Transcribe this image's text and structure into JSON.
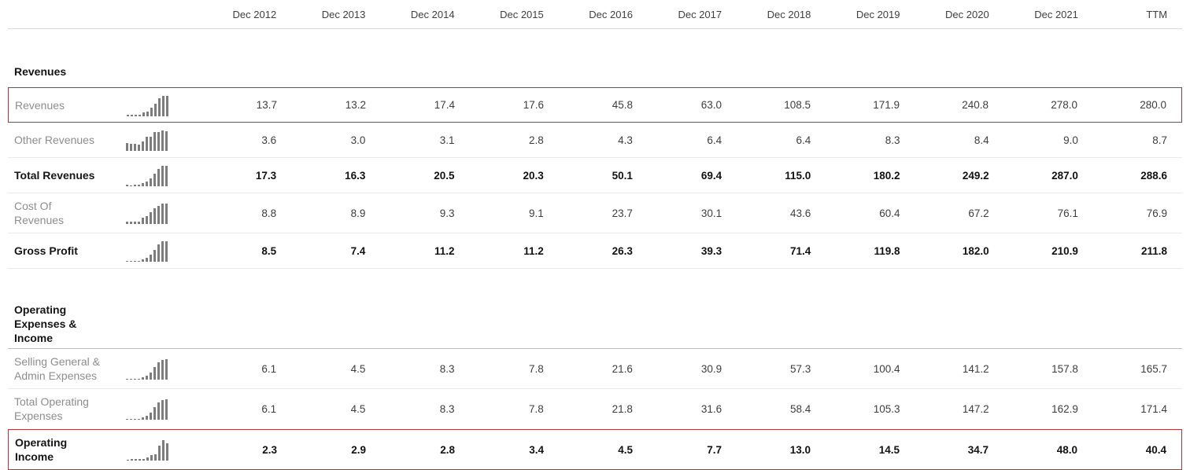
{
  "columns": [
    "Dec 2012",
    "Dec 2013",
    "Dec 2014",
    "Dec 2015",
    "Dec 2016",
    "Dec 2017",
    "Dec 2018",
    "Dec 2019",
    "Dec 2020",
    "Dec 2021",
    "TTM"
  ],
  "colors": {
    "highlight_border": "#b2353c",
    "spark_bar": "#7d7d7d",
    "divider_light": "#ebebeb",
    "divider_dark": "#bdbdbd"
  },
  "icons": {
    "sparkline": "mini-bar-chart-icon"
  },
  "sections": [
    {
      "title": "Revenues",
      "rows": [
        {
          "label": "Revenues",
          "bold": false,
          "highlighted": true,
          "values": [
            "13.7",
            "13.2",
            "17.4",
            "17.6",
            "45.8",
            "63.0",
            "108.5",
            "171.9",
            "240.8",
            "278.0",
            "280.0"
          ]
        },
        {
          "label": "Other Revenues",
          "bold": false,
          "highlighted": false,
          "values": [
            "3.6",
            "3.0",
            "3.1",
            "2.8",
            "4.3",
            "6.4",
            "6.4",
            "8.3",
            "8.4",
            "9.0",
            "8.7"
          ]
        },
        {
          "label": "Total Revenues",
          "bold": true,
          "highlighted": false,
          "values": [
            "17.3",
            "16.3",
            "20.5",
            "20.3",
            "50.1",
            "69.4",
            "115.0",
            "180.2",
            "249.2",
            "287.0",
            "288.6"
          ]
        },
        {
          "label": "Cost Of\nRevenues",
          "bold": false,
          "highlighted": false,
          "values": [
            "8.8",
            "8.9",
            "9.3",
            "9.1",
            "23.7",
            "30.1",
            "43.6",
            "60.4",
            "67.2",
            "76.1",
            "76.9"
          ]
        },
        {
          "label": "Gross Profit",
          "bold": true,
          "highlighted": false,
          "values": [
            "8.5",
            "7.4",
            "11.2",
            "11.2",
            "26.3",
            "39.3",
            "71.4",
            "119.8",
            "182.0",
            "210.9",
            "211.8"
          ]
        }
      ]
    },
    {
      "title": "Operating\nExpenses &\nIncome",
      "rows": [
        {
          "label": "Selling General &\nAdmin Expenses",
          "bold": false,
          "highlighted": false,
          "values": [
            "6.1",
            "4.5",
            "8.3",
            "7.8",
            "21.6",
            "30.9",
            "57.3",
            "100.4",
            "141.2",
            "157.8",
            "165.7"
          ]
        },
        {
          "label": "Total Operating\nExpenses",
          "bold": false,
          "highlighted": false,
          "values": [
            "6.1",
            "4.5",
            "8.3",
            "7.8",
            "21.8",
            "31.6",
            "58.4",
            "105.3",
            "147.2",
            "162.9",
            "171.4"
          ]
        },
        {
          "label": "Operating\nIncome",
          "bold": true,
          "highlighted": true,
          "values": [
            "2.3",
            "2.9",
            "2.8",
            "3.4",
            "4.5",
            "7.7",
            "13.0",
            "14.5",
            "34.7",
            "48.0",
            "40.4"
          ]
        }
      ]
    }
  ]
}
